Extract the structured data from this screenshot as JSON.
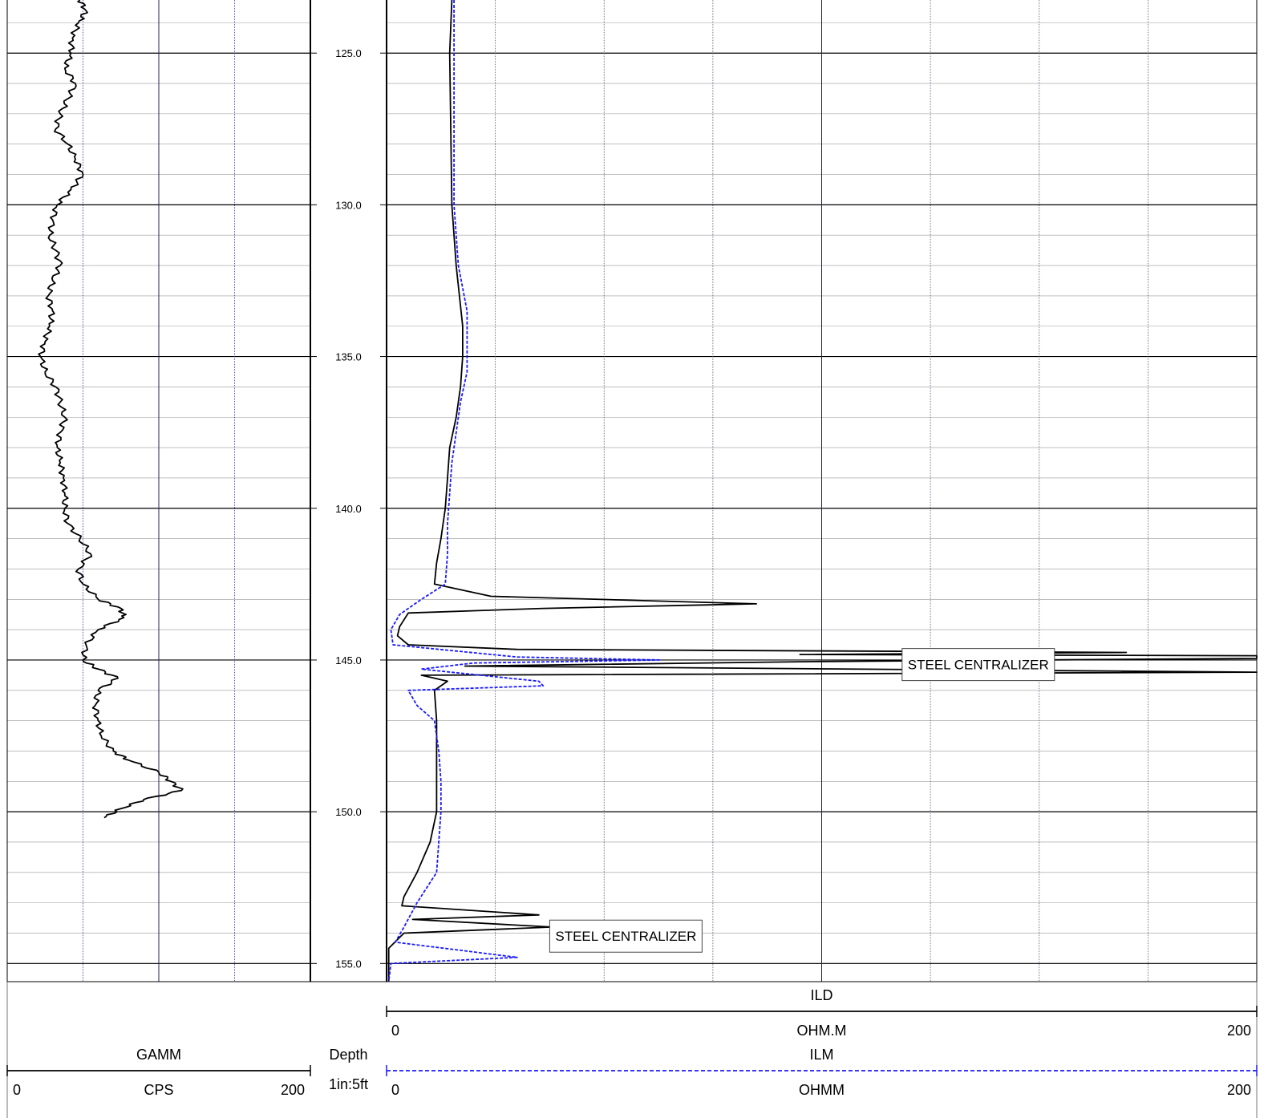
{
  "chart_data": {
    "type": "line",
    "depth_track": {
      "label": "Depth",
      "scale_label": "1in:5ft",
      "range": [
        123.25,
        155.6
      ],
      "major_ticks": [
        "125.0",
        "130.0",
        "135.0",
        "140.0",
        "145.0",
        "150.0",
        "155.0"
      ],
      "minor_step": 1
    },
    "tracks": [
      {
        "name": "GAMM",
        "unit": "CPS",
        "range": [
          0,
          200
        ],
        "min_label": "0",
        "max_label": "200",
        "color": "#000000",
        "style": "solid",
        "points": [
          [
            123.25,
            48
          ],
          [
            123.6,
            52
          ],
          [
            124.0,
            47
          ],
          [
            124.5,
            43
          ],
          [
            125.0,
            42
          ],
          [
            125.5,
            38
          ],
          [
            126.0,
            45
          ],
          [
            126.5,
            40
          ],
          [
            127.0,
            35
          ],
          [
            127.5,
            32
          ],
          [
            128.0,
            40
          ],
          [
            128.5,
            45
          ],
          [
            129.0,
            50
          ],
          [
            129.5,
            42
          ],
          [
            130.0,
            33
          ],
          [
            130.5,
            30
          ],
          [
            131.0,
            28
          ],
          [
            131.5,
            32
          ],
          [
            132.0,
            35
          ],
          [
            132.5,
            30
          ],
          [
            133.0,
            27
          ],
          [
            133.5,
            30
          ],
          [
            134.0,
            28
          ],
          [
            134.5,
            25
          ],
          [
            135.0,
            22
          ],
          [
            135.5,
            25
          ],
          [
            136.0,
            32
          ],
          [
            136.5,
            35
          ],
          [
            137.0,
            38
          ],
          [
            137.5,
            35
          ],
          [
            138.0,
            33
          ],
          [
            138.5,
            35
          ],
          [
            139.0,
            37
          ],
          [
            139.5,
            38
          ],
          [
            140.0,
            38
          ],
          [
            140.5,
            40
          ],
          [
            141.0,
            48
          ],
          [
            141.5,
            55
          ],
          [
            142.0,
            47
          ],
          [
            142.5,
            50
          ],
          [
            143.0,
            60
          ],
          [
            143.3,
            75
          ],
          [
            143.6,
            77
          ],
          [
            144.0,
            60
          ],
          [
            144.5,
            52
          ],
          [
            145.0,
            50
          ],
          [
            145.3,
            60
          ],
          [
            145.6,
            73
          ],
          [
            146.0,
            60
          ],
          [
            146.5,
            58
          ],
          [
            147.0,
            60
          ],
          [
            147.5,
            62
          ],
          [
            148.0,
            70
          ],
          [
            148.3,
            80
          ],
          [
            148.7,
            100
          ],
          [
            149.0,
            108
          ],
          [
            149.3,
            115
          ],
          [
            149.6,
            90
          ],
          [
            149.9,
            75
          ],
          [
            150.2,
            64
          ]
        ]
      },
      {
        "name": "ILD",
        "unit": "OHM.M",
        "range": [
          0,
          200
        ],
        "min_label": "0",
        "max_label": "200",
        "color": "#000000",
        "style": "solid",
        "points": [
          [
            123.25,
            15
          ],
          [
            125.0,
            14.5
          ],
          [
            130.0,
            15
          ],
          [
            132.0,
            16
          ],
          [
            134.0,
            17.5
          ],
          [
            135.0,
            17.5
          ],
          [
            136.0,
            17
          ],
          [
            137.0,
            16
          ],
          [
            138.0,
            14.5
          ],
          [
            139.0,
            14
          ],
          [
            140.0,
            13.5
          ],
          [
            141.0,
            12.5
          ],
          [
            141.8,
            11.5
          ],
          [
            142.5,
            11
          ],
          [
            142.9,
            24
          ],
          [
            143.15,
            85
          ],
          [
            143.3,
            36
          ],
          [
            143.45,
            5
          ],
          [
            143.9,
            3
          ],
          [
            144.2,
            2.5
          ],
          [
            144.5,
            5
          ],
          [
            144.65,
            30
          ],
          [
            144.75,
            170
          ],
          [
            144.82,
            95
          ],
          [
            144.86,
            200
          ],
          [
            144.95,
            200
          ],
          [
            145.05,
            100
          ],
          [
            145.2,
            18
          ],
          [
            145.4,
            200
          ],
          [
            145.5,
            8
          ],
          [
            145.7,
            14
          ],
          [
            146.0,
            11
          ],
          [
            147.0,
            11.5
          ],
          [
            148.0,
            11.5
          ],
          [
            149.0,
            11.5
          ],
          [
            150.0,
            11.5
          ],
          [
            151.0,
            10
          ],
          [
            152.0,
            7
          ],
          [
            152.8,
            4
          ],
          [
            153.1,
            3.5
          ],
          [
            153.4,
            35
          ],
          [
            153.55,
            6
          ],
          [
            153.8,
            38
          ],
          [
            154.0,
            4
          ],
          [
            154.5,
            0.5
          ],
          [
            155.0,
            0.5
          ],
          [
            155.6,
            0.5
          ]
        ]
      },
      {
        "name": "ILM",
        "unit": "OHMM",
        "range": [
          0,
          200
        ],
        "min_label": "0",
        "max_label": "200",
        "color": "#1a1aff",
        "style": "dashed",
        "points": [
          [
            123.25,
            15.5
          ],
          [
            125.0,
            15.5
          ],
          [
            130.0,
            15.5
          ],
          [
            132.0,
            16.5
          ],
          [
            133.5,
            18.5
          ],
          [
            134.5,
            18.5
          ],
          [
            135.5,
            18.5
          ],
          [
            136.5,
            17
          ],
          [
            137.5,
            16
          ],
          [
            138.5,
            15
          ],
          [
            139.5,
            14.5
          ],
          [
            140.5,
            14
          ],
          [
            141.5,
            14
          ],
          [
            142.5,
            13.5
          ],
          [
            143.0,
            8
          ],
          [
            143.5,
            3
          ],
          [
            144.0,
            1
          ],
          [
            144.5,
            1.5
          ],
          [
            144.9,
            30
          ],
          [
            145.0,
            63
          ],
          [
            145.1,
            20
          ],
          [
            145.3,
            8
          ],
          [
            145.7,
            35
          ],
          [
            145.85,
            36
          ],
          [
            146.0,
            5
          ],
          [
            146.5,
            7
          ],
          [
            147.0,
            11
          ],
          [
            148.0,
            12
          ],
          [
            149.0,
            12.5
          ],
          [
            150.0,
            12.5
          ],
          [
            151.0,
            12
          ],
          [
            152.0,
            11.5
          ],
          [
            153.0,
            7
          ],
          [
            153.8,
            4
          ],
          [
            154.3,
            2
          ],
          [
            154.8,
            30
          ],
          [
            155.0,
            1
          ],
          [
            155.6,
            0.5
          ]
        ]
      }
    ],
    "annotations": [
      {
        "text": "STEEL CENTRALIZER",
        "depth": 145.15,
        "value": 136
      },
      {
        "text": "STEEL CENTRALIZER",
        "depth": 154.1,
        "value": 55
      }
    ],
    "grid": true,
    "colors": {
      "major_grid": "#000000",
      "minor_grid": "#999999",
      "vertical_grid_left": "#3333aa",
      "vertical_grid_right": "#555577"
    }
  }
}
